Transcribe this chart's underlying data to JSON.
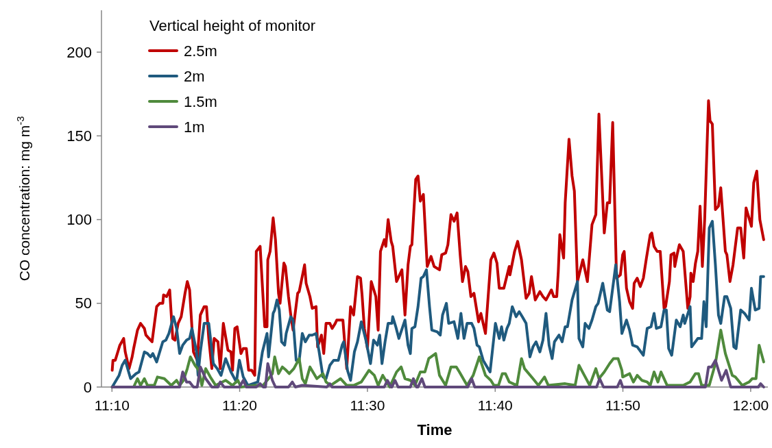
{
  "chart_data": {
    "type": "line",
    "xlabel": "Time",
    "ylabel": "CO concentration: mg m$^{-3}$",
    "legend_title": "Vertical height of monitor",
    "legend": "top left",
    "grid": false,
    "line_style": "solid",
    "marker": "none",
    "xlim": [
      11.153,
      12.018
    ],
    "xticks": [
      {
        "value": 11.1667,
        "label": "11:10"
      },
      {
        "value": 11.3333,
        "label": "11:20"
      },
      {
        "value": 11.5,
        "label": "11:30"
      },
      {
        "value": 11.6667,
        "label": "11:40"
      },
      {
        "value": 11.8333,
        "label": "11:50"
      },
      {
        "value": 12,
        "label": "12:00"
      }
    ],
    "ylim": [
      0,
      225
    ],
    "yticks": [
      0,
      50,
      100,
      150,
      200
    ],
    "series": [
      {
        "name": "2.5m",
        "color": "#c00000",
        "x": [
          11.167,
          11.168,
          11.171,
          11.175,
          11.177,
          11.182,
          11.184,
          11.189,
          11.193,
          11.195,
          11.2,
          11.204,
          11.209,
          11.211,
          11.215,
          11.219,
          11.225,
          11.229,
          11.233,
          11.234,
          11.238,
          11.242,
          11.246,
          11.249,
          11.253,
          11.257,
          11.262,
          11.265,
          11.268,
          11.273,
          11.278,
          11.282,
          11.287,
          11.29,
          11.293,
          11.297,
          11.3,
          11.305,
          11.308,
          11.312,
          11.318,
          11.322,
          11.324,
          11.327,
          11.33,
          11.335,
          11.338,
          11.342,
          11.345,
          11.349,
          11.353,
          11.355,
          11.36,
          11.366,
          11.369,
          11.37,
          11.373,
          11.377,
          11.38,
          11.384,
          11.386,
          11.391,
          11.393,
          11.397,
          11.4,
          11.403,
          11.409,
          11.411,
          11.418,
          11.42,
          11.425,
          11.428,
          11.433,
          11.435,
          11.44,
          11.443,
          11.446,
          11.451,
          11.454,
          11.458,
          11.46,
          11.468,
          11.473,
          11.478,
          11.482,
          11.487,
          11.491,
          11.493,
          11.496,
          11.5,
          11.505,
          11.511,
          11.514,
          11.517,
          11.522,
          11.524,
          11.527,
          11.531,
          11.533,
          11.538,
          11.54,
          11.545,
          11.549,
          11.553,
          11.556,
          11.558,
          11.563,
          11.566,
          11.569,
          11.573,
          11.578,
          11.583,
          11.587,
          11.594,
          11.597,
          11.602,
          11.605,
          11.609,
          11.613,
          11.617,
          11.621,
          11.624,
          11.628,
          11.631,
          11.635,
          11.639,
          11.645,
          11.648,
          11.654,
          11.661,
          11.665,
          11.669,
          11.672,
          11.678,
          11.685,
          11.686,
          11.692,
          11.696,
          11.701,
          11.707,
          11.711,
          11.714,
          11.719,
          11.725,
          11.729,
          11.733,
          11.74,
          11.743,
          11.747,
          11.749,
          11.751,
          11.756,
          11.758,
          11.763,
          11.767,
          11.77,
          11.774,
          11.781,
          11.787,
          11.793,
          11.798,
          11.802,
          11.809,
          11.813,
          11.816,
          11.82,
          11.825,
          11.83,
          11.833,
          11.835,
          11.838,
          11.842,
          11.846,
          11.848,
          11.852,
          11.856,
          11.86,
          11.864,
          11.869,
          11.871,
          11.874,
          11.878,
          11.882,
          11.887,
          11.889,
          11.894,
          11.896,
          11.9,
          11.901,
          11.904,
          11.907,
          11.912,
          11.918,
          11.921,
          11.922,
          11.925,
          11.928,
          11.931,
          11.934,
          11.937,
          11.94,
          11.945,
          11.947,
          11.95,
          11.954,
          11.958,
          11.961,
          11.967,
          11.969,
          11.973,
          11.977,
          11.983,
          11.987,
          11.991,
          11.994,
          12.001,
          12.004,
          12.008,
          12.012,
          12.017
        ],
        "values": [
          10,
          16,
          16,
          22,
          25,
          29,
          21,
          11,
          18,
          23,
          34,
          38,
          35,
          31,
          29,
          27,
          48,
          50,
          50,
          55,
          54,
          58,
          29,
          28,
          38,
          42,
          56,
          63,
          58,
          21,
          16,
          43,
          48,
          48,
          29,
          11,
          29,
          27,
          11,
          38,
          22,
          21,
          10,
          35,
          36,
          20,
          23,
          23,
          10,
          10,
          7,
          81,
          84,
          36,
          36,
          76,
          81,
          101,
          88,
          56,
          50,
          74,
          72,
          54,
          43,
          34,
          56,
          57,
          73,
          62,
          54,
          47,
          48,
          24,
          31,
          20,
          38,
          38,
          35,
          38,
          40,
          40,
          11,
          48,
          43,
          66,
          65,
          55,
          35,
          23,
          63,
          54,
          34,
          81,
          88,
          84,
          100,
          87,
          84,
          63,
          65,
          70,
          43,
          73,
          84,
          85,
          124,
          126,
          111,
          115,
          72,
          78,
          72,
          70,
          79,
          80,
          85,
          103,
          99,
          104,
          79,
          63,
          72,
          69,
          54,
          56,
          39,
          44,
          32,
          76,
          80,
          74,
          59,
          59,
          72,
          67,
          81,
          87,
          76,
          53,
          56,
          66,
          52,
          57,
          54,
          52,
          58,
          54,
          54,
          69,
          91,
          77,
          110,
          148,
          126,
          117,
          63,
          76,
          63,
          97,
          103,
          163,
          92,
          110,
          110,
          158,
          65,
          67,
          79,
          81,
          59,
          51,
          47,
          62,
          65,
          60,
          65,
          77,
          91,
          92,
          84,
          81,
          81,
          47,
          48,
          63,
          79,
          80,
          72,
          79,
          85,
          81,
          47,
          54,
          68,
          63,
          74,
          81,
          108,
          72,
          100,
          171,
          159,
          157,
          106,
          108,
          119,
          81,
          79,
          63,
          73,
          95,
          95,
          77,
          107,
          96,
          122,
          129,
          100,
          88
        ]
      },
      {
        "name": "2m",
        "color": "#1f5a7e",
        "x": [
          11.167,
          11.176,
          11.18,
          11.184,
          11.191,
          11.198,
          11.202,
          11.209,
          11.213,
          11.217,
          11.22,
          11.225,
          11.233,
          11.237,
          11.241,
          11.247,
          11.251,
          11.255,
          11.259,
          11.264,
          11.268,
          11.271,
          11.277,
          11.279,
          11.282,
          11.287,
          11.293,
          11.299,
          11.304,
          11.309,
          11.315,
          11.322,
          11.329,
          11.333,
          11.338,
          11.344,
          11.357,
          11.363,
          11.369,
          11.371,
          11.377,
          11.379,
          11.382,
          11.385,
          11.388,
          11.392,
          11.394,
          11.4,
          11.403,
          11.407,
          11.411,
          11.415,
          11.419,
          11.424,
          11.428,
          11.433,
          11.437,
          11.442,
          11.446,
          11.451,
          11.456,
          11.462,
          11.467,
          11.469,
          11.474,
          11.478,
          11.483,
          11.487,
          11.492,
          11.498,
          11.504,
          11.508,
          11.513,
          11.516,
          11.519,
          11.523,
          11.527,
          11.532,
          11.533,
          11.537,
          11.541,
          11.549,
          11.553,
          11.556,
          11.558,
          11.562,
          11.566,
          11.57,
          11.573,
          11.577,
          11.581,
          11.584,
          11.591,
          11.595,
          11.598,
          11.603,
          11.606,
          11.613,
          11.618,
          11.622,
          11.626,
          11.63,
          11.636,
          11.639,
          11.643,
          11.646,
          11.651,
          11.66,
          11.667,
          11.672,
          11.675,
          11.678,
          11.682,
          11.685,
          11.689,
          11.694,
          11.698,
          11.702,
          11.707,
          11.712,
          11.716,
          11.72,
          11.725,
          11.729,
          11.733,
          11.737,
          11.741,
          11.744,
          11.75,
          11.754,
          11.758,
          11.761,
          11.767,
          11.774,
          11.776,
          11.781,
          11.784,
          11.789,
          11.793,
          11.798,
          11.801,
          11.807,
          11.813,
          11.816,
          11.824,
          11.829,
          11.832,
          11.838,
          11.842,
          11.846,
          11.852,
          11.86,
          11.865,
          11.87,
          11.874,
          11.877,
          11.883,
          11.887,
          11.89,
          11.893,
          11.897,
          11.903,
          11.908,
          11.912,
          11.914,
          11.921,
          11.923,
          11.931,
          11.936,
          11.939,
          11.942,
          11.946,
          11.95,
          11.954,
          11.958,
          11.961,
          11.966,
          11.969,
          11.974,
          11.978,
          11.981,
          11.987,
          11.992,
          11.998,
          12.001,
          12.006,
          12.011,
          12.013,
          12.017
        ],
        "values": [
          0,
          7,
          13,
          16,
          5,
          8,
          9,
          21,
          20,
          18,
          20,
          15,
          27,
          28,
          32,
          42,
          35,
          20,
          25,
          28,
          29,
          35,
          21,
          7,
          21,
          38,
          38,
          14,
          11,
          7,
          17,
          9,
          3,
          16,
          6,
          1,
          3,
          21,
          32,
          18,
          44,
          46,
          52,
          46,
          27,
          25,
          32,
          42,
          40,
          16,
          16,
          32,
          27,
          31,
          31,
          32,
          21,
          6,
          5,
          13,
          16,
          16,
          25,
          27,
          10,
          4,
          21,
          27,
          39,
          28,
          14,
          28,
          25,
          31,
          14,
          27,
          38,
          38,
          42,
          36,
          29,
          40,
          25,
          20,
          35,
          36,
          48,
          65,
          66,
          70,
          48,
          34,
          33,
          31,
          43,
          50,
          38,
          39,
          29,
          44,
          29,
          38,
          38,
          35,
          25,
          24,
          16,
          9,
          38,
          29,
          36,
          28,
          35,
          38,
          48,
          42,
          45,
          42,
          38,
          18,
          24,
          27,
          21,
          28,
          44,
          25,
          17,
          27,
          31,
          27,
          36,
          36,
          52,
          63,
          29,
          24,
          38,
          35,
          40,
          48,
          50,
          62,
          46,
          45,
          73,
          51,
          32,
          40,
          34,
          25,
          24,
          19,
          35,
          36,
          44,
          35,
          36,
          46,
          46,
          23,
          19,
          40,
          36,
          43,
          38,
          48,
          24,
          29,
          29,
          51,
          36,
          95,
          99,
          73,
          43,
          38,
          54,
          54,
          47,
          24,
          23,
          46,
          44,
          40,
          59,
          46,
          47,
          66,
          66
        ]
      },
      {
        "name": "1.5m",
        "color": "#4f8a3c",
        "x": [
          11.167,
          11.195,
          11.2,
          11.204,
          11.209,
          11.213,
          11.222,
          11.226,
          11.235,
          11.244,
          11.251,
          11.255,
          11.26,
          11.265,
          11.269,
          11.275,
          11.28,
          11.284,
          11.289,
          11.295,
          11.302,
          11.315,
          11.324,
          11.331,
          11.335,
          11.355,
          11.364,
          11.376,
          11.379,
          11.384,
          11.389,
          11.394,
          11.398,
          11.404,
          11.411,
          11.415,
          11.419,
          11.425,
          11.434,
          11.442,
          11.446,
          11.452,
          11.465,
          11.473,
          11.482,
          11.492,
          11.502,
          11.509,
          11.514,
          11.52,
          11.529,
          11.538,
          11.544,
          11.549,
          11.556,
          11.562,
          11.569,
          11.575,
          11.58,
          11.589,
          11.594,
          11.602,
          11.609,
          11.616,
          11.62,
          11.63,
          11.638,
          11.646,
          11.654,
          11.661,
          11.665,
          11.671,
          11.676,
          11.68,
          11.685,
          11.695,
          11.701,
          11.705,
          11.716,
          11.723,
          11.731,
          11.736,
          11.758,
          11.771,
          11.776,
          11.783,
          11.79,
          11.798,
          11.802,
          11.809,
          11.816,
          11.821,
          11.827,
          11.832,
          11.833,
          11.842,
          11.847,
          11.852,
          11.858,
          11.865,
          11.869,
          11.874,
          11.879,
          11.883,
          11.891,
          11.912,
          11.921,
          11.928,
          11.932,
          11.936,
          11.946,
          11.954,
          11.961,
          11.967,
          11.976,
          11.98,
          11.989,
          11.998,
          12.002,
          12.007,
          12.011,
          12.017
        ],
        "values": [
          0,
          0,
          5,
          1,
          5,
          1,
          1,
          6,
          5,
          1,
          4,
          1,
          4,
          11,
          18,
          13,
          10,
          1,
          11,
          6,
          1,
          4,
          1,
          4,
          0,
          1,
          1,
          8,
          18,
          8,
          12,
          10,
          8,
          11,
          17,
          5,
          2,
          12,
          5,
          8,
          3,
          1,
          5,
          1,
          1,
          3,
          10,
          7,
          1,
          7,
          0,
          9,
          12,
          5,
          4,
          1,
          9,
          9,
          17,
          20,
          7,
          1,
          12,
          12,
          9,
          1,
          7,
          18,
          7,
          4,
          1,
          1,
          8,
          8,
          3,
          1,
          17,
          11,
          5,
          1,
          6,
          1,
          2,
          1,
          13,
          7,
          1,
          11,
          5,
          9,
          14,
          17,
          17,
          10,
          6,
          8,
          3,
          7,
          4,
          3,
          1,
          9,
          3,
          9,
          1,
          1,
          3,
          8,
          8,
          1,
          1,
          14,
          34,
          20,
          7,
          6,
          1,
          3,
          5,
          5,
          25,
          15
        ]
      },
      {
        "name": "1m",
        "color": "#5f497a",
        "x": [
          11.167,
          11.255,
          11.259,
          11.264,
          11.268,
          11.273,
          11.278,
          11.282,
          11.289,
          11.297,
          11.305,
          11.308,
          11.313,
          11.333,
          11.338,
          11.342,
          11.355,
          11.36,
          11.364,
          11.367,
          11.37,
          11.376,
          11.38,
          11.397,
          11.402,
          11.406,
          11.415,
          11.447,
          11.451,
          11.454,
          11.522,
          11.526,
          11.531,
          11.532,
          11.536,
          11.54,
          11.556,
          11.56,
          11.564,
          11.566,
          11.571,
          11.575,
          11.631,
          11.636,
          11.64,
          11.799,
          11.803,
          11.808,
          11.826,
          11.83,
          11.833,
          11.941,
          11.945,
          11.949,
          11.954,
          11.962,
          11.968,
          11.974,
          12.01,
          12.013,
          12.017
        ],
        "values": [
          0,
          0,
          9,
          3,
          3,
          0,
          0,
          12,
          5,
          0,
          0,
          3,
          0,
          0,
          4,
          0,
          0,
          2,
          0,
          0,
          14,
          4,
          0,
          0,
          3,
          0,
          1,
          0,
          2,
          0,
          0,
          4,
          0,
          0,
          4,
          0,
          0,
          5,
          0,
          0,
          5,
          0,
          0,
          5,
          0,
          0,
          5,
          0,
          0,
          4,
          0,
          0,
          12,
          12,
          16,
          4,
          10,
          0,
          0,
          2,
          0
        ]
      }
    ]
  }
}
